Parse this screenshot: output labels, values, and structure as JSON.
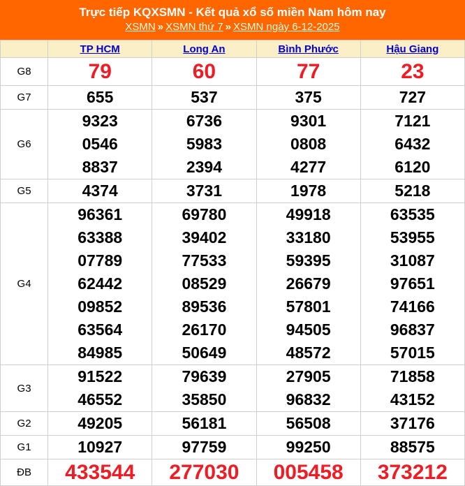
{
  "header": {
    "title": "Trực tiếp KQXSMN - Kết quả xổ số miền Nam hôm nay",
    "breadcrumb": {
      "items": [
        "XSMN",
        "XSMN thứ 7",
        "XSMN ngày 6-12-2025"
      ],
      "separator": "»"
    },
    "colors": {
      "banner_background": "#FF6600",
      "title_text": "#FFFFFF",
      "breadcrumb_link": "#FFFFE0"
    }
  },
  "table": {
    "columns": [
      "TP HCM",
      "Long An",
      "Bình Phước",
      "Hậu Giang"
    ],
    "colors": {
      "header_row_background": "#FBEFC8",
      "column_link": "#0000D6",
      "highlight_number": "#EE1C25",
      "normal_number": "#000000",
      "border": "#CFCFCF"
    },
    "prizes": [
      {
        "label": "G8",
        "cols": [
          [
            "79"
          ],
          [
            "60"
          ],
          [
            "77"
          ],
          [
            "23"
          ]
        ]
      },
      {
        "label": "G7",
        "cols": [
          [
            "655"
          ],
          [
            "537"
          ],
          [
            "375"
          ],
          [
            "727"
          ]
        ]
      },
      {
        "label": "G6",
        "cols": [
          [
            "9323",
            "0546",
            "8837"
          ],
          [
            "6736",
            "5983",
            "2394"
          ],
          [
            "9301",
            "0808",
            "4277"
          ],
          [
            "7121",
            "6432",
            "6120"
          ]
        ]
      },
      {
        "label": "G5",
        "cols": [
          [
            "4374"
          ],
          [
            "3731"
          ],
          [
            "1978"
          ],
          [
            "5218"
          ]
        ]
      },
      {
        "label": "G4",
        "cols": [
          [
            "96361",
            "63388",
            "07789",
            "62442",
            "09852",
            "63564",
            "84985"
          ],
          [
            "69780",
            "39402",
            "77533",
            "08529",
            "89536",
            "26170",
            "50649"
          ],
          [
            "49918",
            "33180",
            "59395",
            "26679",
            "57801",
            "94505",
            "48572"
          ],
          [
            "63535",
            "53955",
            "31087",
            "97651",
            "74166",
            "96837",
            "57015"
          ]
        ]
      },
      {
        "label": "G3",
        "cols": [
          [
            "91522",
            "46552"
          ],
          [
            "79639",
            "35850"
          ],
          [
            "27905",
            "96832"
          ],
          [
            "71858",
            "43152"
          ]
        ]
      },
      {
        "label": "G2",
        "cols": [
          [
            "49205"
          ],
          [
            "56181"
          ],
          [
            "56508"
          ],
          [
            "37176"
          ]
        ]
      },
      {
        "label": "G1",
        "cols": [
          [
            "10927"
          ],
          [
            "97759"
          ],
          [
            "99250"
          ],
          [
            "88575"
          ]
        ]
      },
      {
        "label": "ĐB",
        "cols": [
          [
            "433544"
          ],
          [
            "277030"
          ],
          [
            "005458"
          ],
          [
            "373212"
          ]
        ]
      }
    ]
  }
}
